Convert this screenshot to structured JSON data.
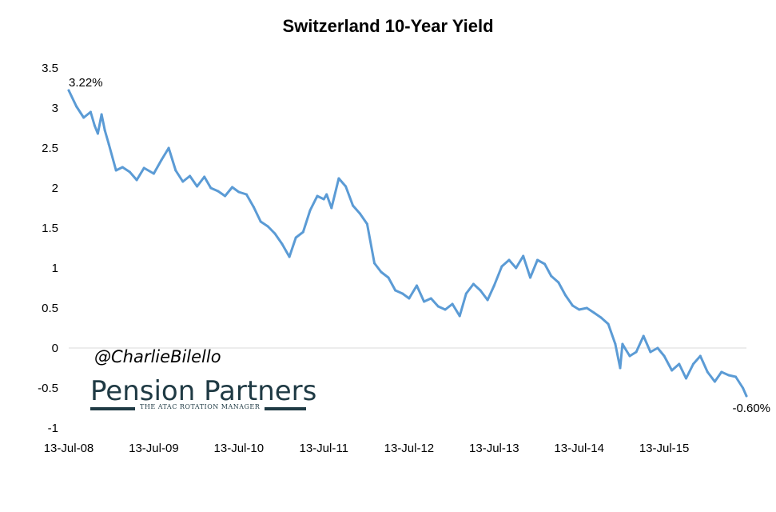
{
  "chart_data": {
    "type": "line",
    "title": "Switzerland 10-Year Yield",
    "xlabel": "",
    "ylabel": "",
    "ylim": [
      -1,
      3.5
    ],
    "yticks": [
      "3.5",
      "3",
      "2.5",
      "2",
      "1.5",
      "1",
      "0.5",
      "0",
      "-0.5",
      "-1"
    ],
    "xticks": [
      "13-Jul-08",
      "13-Jul-09",
      "13-Jul-10",
      "13-Jul-11",
      "13-Jul-12",
      "13-Jul-13",
      "13-Jul-14",
      "13-Jul-15"
    ],
    "line_color": "#5b9bd5",
    "grid": "zero line only",
    "annotations": {
      "start": "3.22%",
      "end": "-0.60%"
    },
    "series": [
      {
        "x": [
          "2008-07-13",
          "2008-08-15",
          "2008-09-15",
          "2008-10-15",
          "2008-11-01",
          "2008-11-15",
          "2008-12-01",
          "2008-12-15",
          "2009-01-01",
          "2009-02-01",
          "2009-03-01",
          "2009-04-01",
          "2009-05-01",
          "2009-06-01",
          "2009-07-13",
          "2009-08-15",
          "2009-09-15",
          "2009-10-15",
          "2009-11-15",
          "2009-12-15",
          "2010-01-15",
          "2010-02-15",
          "2010-03-15",
          "2010-04-15",
          "2010-05-15",
          "2010-06-15",
          "2010-07-13",
          "2010-08-15",
          "2010-09-15",
          "2010-10-15",
          "2010-11-15",
          "2010-12-15",
          "2011-01-15",
          "2011-02-15",
          "2011-03-15",
          "2011-04-15",
          "2011-05-15",
          "2011-06-15",
          "2011-07-13",
          "2011-07-25",
          "2011-08-15",
          "2011-09-15",
          "2011-10-15",
          "2011-11-15",
          "2011-12-15",
          "2012-01-15",
          "2012-02-15",
          "2012-03-15",
          "2012-04-15",
          "2012-05-15",
          "2012-06-15",
          "2012-07-13",
          "2012-08-15",
          "2012-09-15",
          "2012-10-15",
          "2012-11-15",
          "2012-12-15",
          "2013-01-15",
          "2013-02-15",
          "2013-03-15",
          "2013-04-15",
          "2013-05-15",
          "2013-06-15",
          "2013-07-13",
          "2013-08-15",
          "2013-09-15",
          "2013-10-15",
          "2013-11-15",
          "2013-12-15",
          "2014-01-15",
          "2014-02-15",
          "2014-03-15",
          "2014-04-15",
          "2014-05-15",
          "2014-06-15",
          "2014-07-13",
          "2014-08-15",
          "2014-09-15",
          "2014-10-15",
          "2014-11-15",
          "2014-12-15",
          "2015-01-05",
          "2015-01-15",
          "2015-01-25",
          "2015-02-15",
          "2015-03-15",
          "2015-04-15",
          "2015-05-15",
          "2015-06-15",
          "2015-07-13",
          "2015-08-15",
          "2015-09-15",
          "2015-10-15",
          "2015-11-15",
          "2015-12-15",
          "2016-01-15",
          "2016-02-15",
          "2016-03-15",
          "2016-04-15",
          "2016-05-15",
          "2016-06-15",
          "2016-06-30"
        ],
        "values": [
          3.22,
          3.02,
          2.88,
          2.95,
          2.78,
          2.68,
          2.92,
          2.72,
          2.55,
          2.22,
          2.26,
          2.2,
          2.1,
          2.25,
          2.18,
          2.35,
          2.5,
          2.22,
          2.08,
          2.15,
          2.02,
          2.14,
          2.0,
          1.96,
          1.9,
          2.01,
          1.95,
          1.92,
          1.76,
          1.58,
          1.52,
          1.43,
          1.3,
          1.14,
          1.38,
          1.45,
          1.72,
          1.9,
          1.86,
          1.92,
          1.75,
          2.12,
          2.02,
          1.78,
          1.68,
          1.55,
          1.06,
          0.95,
          0.88,
          0.72,
          0.68,
          0.62,
          0.78,
          0.58,
          0.62,
          0.52,
          0.48,
          0.55,
          0.4,
          0.68,
          0.8,
          0.72,
          0.6,
          0.78,
          1.02,
          1.1,
          1.0,
          1.15,
          0.88,
          1.1,
          1.05,
          0.9,
          0.82,
          0.66,
          0.53,
          0.48,
          0.5,
          0.44,
          0.38,
          0.3,
          0.05,
          -0.25,
          0.05,
          0.0,
          -0.1,
          -0.05,
          0.15,
          -0.05,
          0.0,
          -0.1,
          -0.28,
          -0.2,
          -0.38,
          -0.2,
          -0.1,
          -0.3,
          -0.42,
          -0.3,
          -0.34,
          -0.36,
          -0.5,
          -0.6
        ]
      }
    ]
  },
  "watermark": {
    "handle": "@CharlieBilello",
    "logo_name": "Pension Partners",
    "logo_tagline": "THE ATAC ROTATION MANAGER"
  }
}
